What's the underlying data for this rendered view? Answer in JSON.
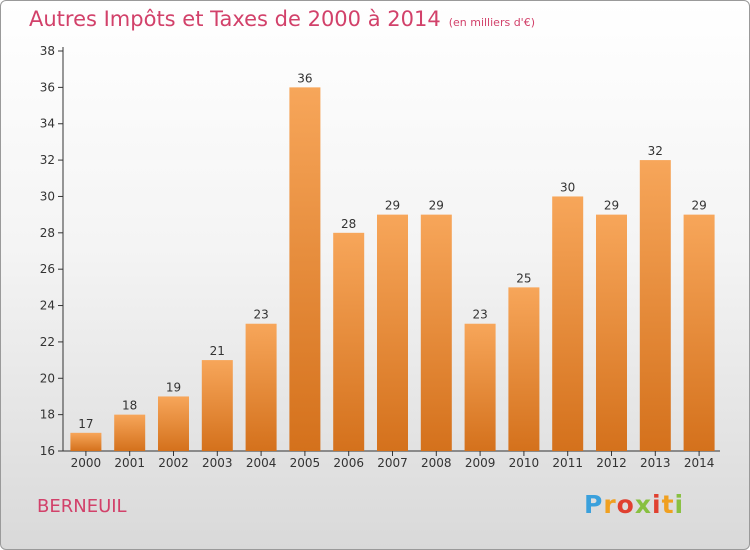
{
  "title": "Autres Impôts et Taxes de 2000 à 2014",
  "subtitle": "(en milliers d'€)",
  "commune": "BERNEUIL",
  "logo": {
    "letters": [
      "P",
      "r",
      "o",
      "x",
      "i",
      "t",
      "i"
    ]
  },
  "colors": {
    "title": "#d2416a",
    "bar_light": "#f7a65a",
    "bar_dark": "#d4711c",
    "axis": "#333333",
    "grid": "#cccccc"
  },
  "chart_data": {
    "type": "bar",
    "title": "Autres Impôts et Taxes de 2000 à 2014",
    "subtitle": "(en milliers d'€)",
    "xlabel": "",
    "ylabel": "",
    "categories": [
      "2000",
      "2001",
      "2002",
      "2003",
      "2004",
      "2005",
      "2006",
      "2007",
      "2008",
      "2009",
      "2010",
      "2011",
      "2012",
      "2013",
      "2014"
    ],
    "values": [
      17,
      18,
      19,
      21,
      23,
      36,
      28,
      29,
      29,
      23,
      25,
      30,
      29,
      32,
      29
    ],
    "ylim": [
      16,
      38
    ],
    "yticks": [
      16,
      18,
      20,
      22,
      24,
      26,
      28,
      30,
      32,
      34,
      36,
      38
    ],
    "grid": false,
    "legend": "none"
  }
}
